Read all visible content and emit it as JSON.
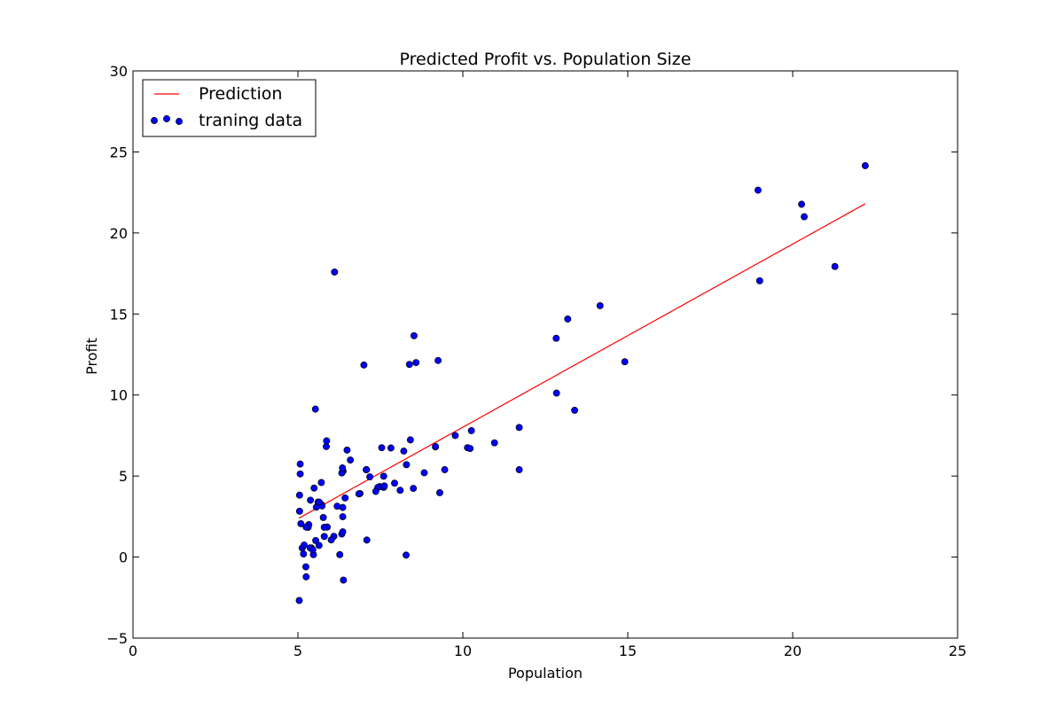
{
  "chart_data": {
    "type": "scatter",
    "title": "Predicted Profit vs. Population Size",
    "xlabel": "Population",
    "ylabel": "Profit",
    "xlim": [
      0,
      25
    ],
    "ylim": [
      -5,
      30
    ],
    "xticks": [
      0,
      5,
      10,
      15,
      20,
      25
    ],
    "yticks": [
      -5,
      0,
      5,
      10,
      15,
      20,
      25,
      30
    ],
    "xtick_labels": [
      "0",
      "5",
      "10",
      "15",
      "20",
      "25"
    ],
    "ytick_labels": [
      "−5",
      "0",
      "5",
      "10",
      "15",
      "20",
      "25",
      "30"
    ],
    "grid": false,
    "legend_location": "upper-left",
    "series": [
      {
        "name": "Prediction",
        "kind": "line",
        "color": "#ff0000",
        "points": [
          [
            5.03,
            2.4
          ],
          [
            22.2,
            21.8
          ]
        ]
      },
      {
        "name": "traning data",
        "kind": "scatter",
        "color": "#0000ff",
        "points": [
          [
            6.11,
            17.59
          ],
          [
            5.53,
            9.13
          ],
          [
            8.52,
            13.66
          ],
          [
            7.0,
            11.85
          ],
          [
            5.86,
            6.82
          ],
          [
            8.38,
            11.89
          ],
          [
            7.48,
            4.35
          ],
          [
            8.58,
            12.0
          ],
          [
            6.49,
            6.6
          ],
          [
            5.05,
            3.82
          ],
          [
            5.71,
            3.25
          ],
          [
            14.16,
            15.51
          ],
          [
            5.73,
            3.16
          ],
          [
            8.41,
            7.23
          ],
          [
            5.64,
            0.72
          ],
          [
            5.38,
            3.51
          ],
          [
            6.37,
            5.3
          ],
          [
            5.13,
            0.56
          ],
          [
            6.43,
            3.65
          ],
          [
            7.07,
            5.39
          ],
          [
            6.19,
            3.14
          ],
          [
            20.27,
            21.77
          ],
          [
            5.49,
            4.26
          ],
          [
            6.33,
            5.19
          ],
          [
            5.56,
            3.08
          ],
          [
            18.95,
            22.64
          ],
          [
            12.83,
            13.5
          ],
          [
            10.96,
            7.05
          ],
          [
            13.18,
            14.69
          ],
          [
            22.2,
            24.15
          ],
          [
            5.25,
            -1.22
          ],
          [
            6.59,
            5.99
          ],
          [
            9.25,
            12.13
          ],
          [
            5.89,
            1.85
          ],
          [
            8.21,
            6.54
          ],
          [
            7.93,
            4.56
          ],
          [
            8.1,
            4.12
          ],
          [
            5.61,
            3.39
          ],
          [
            12.84,
            10.12
          ],
          [
            6.35,
            5.5
          ],
          [
            5.41,
            0.56
          ],
          [
            6.88,
            3.92
          ],
          [
            11.71,
            5.39
          ],
          [
            5.77,
            2.44
          ],
          [
            7.82,
            6.73
          ],
          [
            7.09,
            1.05
          ],
          [
            5.07,
            5.13
          ],
          [
            5.8,
            1.84
          ],
          [
            11.71,
            8.0
          ],
          [
            5.54,
            1.02
          ],
          [
            7.54,
            6.75
          ],
          [
            5.31,
            1.84
          ],
          [
            7.42,
            4.29
          ],
          [
            7.6,
            4.99
          ],
          [
            6.33,
            1.42
          ],
          [
            6.36,
            2.49
          ],
          [
            6.27,
            0.15
          ],
          [
            5.19,
            0.74
          ],
          [
            6.36,
            3.06
          ],
          [
            9.3,
            3.97
          ],
          [
            5.47,
            0.15
          ],
          [
            5.09,
            2.06
          ],
          [
            6.09,
            1.28
          ],
          [
            7.6,
            4.3
          ],
          [
            5.05,
            2.83
          ],
          [
            5.07,
            5.74
          ],
          [
            5.24,
            -0.6
          ],
          [
            21.28,
            17.93
          ],
          [
            9.17,
            6.8
          ],
          [
            5.04,
            -2.68
          ],
          [
            10.26,
            7.8
          ],
          [
            5.37,
            0.57
          ],
          [
            14.91,
            12.05
          ],
          [
            5.64,
            3.39
          ],
          [
            5.17,
            0.19
          ],
          [
            7.62,
            4.39
          ],
          [
            5.8,
            1.27
          ],
          [
            6.36,
            1.56
          ],
          [
            8.29,
            5.7
          ],
          [
            9.17,
            6.82
          ],
          [
            19.0,
            17.05
          ],
          [
            20.35,
            21.0
          ],
          [
            10.14,
            6.75
          ],
          [
            5.71,
            4.6
          ],
          [
            9.77,
            7.5
          ],
          [
            6.85,
            3.9
          ],
          [
            7.08,
            5.39
          ],
          [
            5.33,
            2.0
          ],
          [
            6.01,
            1.06
          ],
          [
            10.22,
            6.7
          ],
          [
            5.25,
            1.85
          ],
          [
            5.87,
            7.17
          ],
          [
            7.18,
            4.95
          ],
          [
            5.45,
            0.45
          ],
          [
            6.38,
            -1.42
          ],
          [
            7.36,
            4.05
          ],
          [
            8.83,
            5.2
          ],
          [
            13.39,
            9.06
          ],
          [
            8.28,
            0.12
          ],
          [
            8.5,
            4.24
          ],
          [
            9.45,
            5.39
          ]
        ]
      }
    ]
  }
}
